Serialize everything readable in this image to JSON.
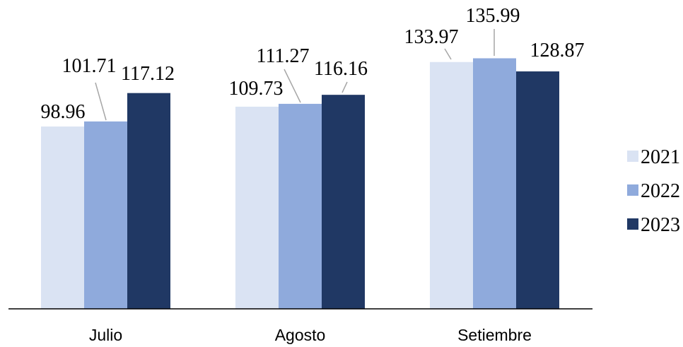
{
  "chart_data": {
    "type": "bar",
    "title": "",
    "xlabel": "",
    "ylabel": "",
    "categories": [
      "Julio",
      "Agosto",
      "Setiembre"
    ],
    "series": [
      {
        "name": "2021",
        "values": [
          98.96,
          109.73,
          133.97
        ],
        "value_labels": [
          "98.96",
          "109.73",
          "133.97"
        ],
        "color": "#dae3f3"
      },
      {
        "name": "2022",
        "values": [
          101.71,
          111.27,
          135.99
        ],
        "value_labels": [
          "101.71",
          "111.27",
          "135.99"
        ],
        "color": "#8faadc"
      },
      {
        "name": "2023",
        "values": [
          117.12,
          116.16,
          128.87
        ],
        "value_labels": [
          "117.12",
          "116.16",
          "128.87"
        ],
        "color": "#203864"
      }
    ],
    "ylim": [
      0,
      160
    ],
    "grid": false,
    "legend": "right",
    "y_axis_visible": false,
    "data_labels": true,
    "leader_line_color": "#a6a6a6",
    "axis_color": "#000000"
  }
}
